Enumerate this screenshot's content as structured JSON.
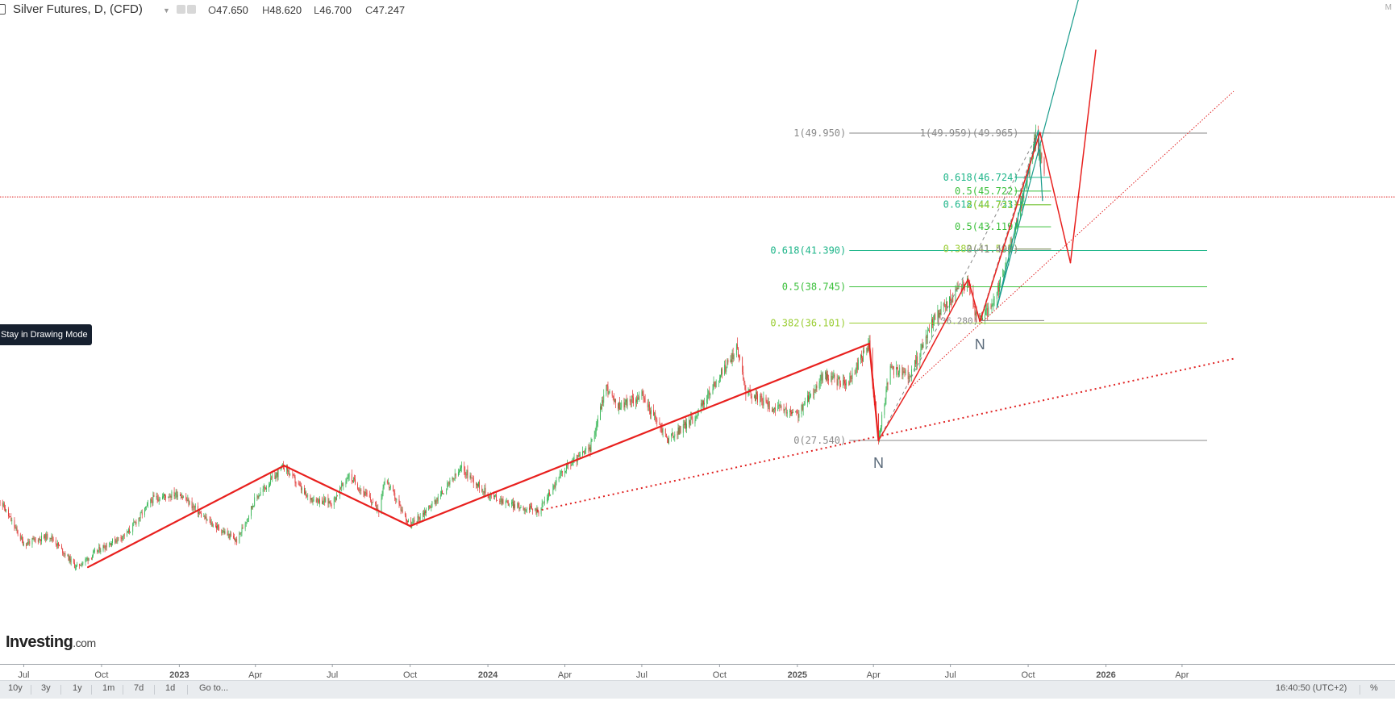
{
  "header": {
    "title": "Silver Futures, D, (CFD)",
    "ohlc": [
      {
        "label": "O",
        "value": "47.650"
      },
      {
        "label": "H",
        "value": "48.620"
      },
      {
        "label": "L",
        "value": "46.700"
      },
      {
        "label": "C",
        "value": "47.247"
      }
    ],
    "corner_mark": "M"
  },
  "tooltip": "Stay in Drawing Mode",
  "logo": {
    "main": "Investing",
    "suffix": ".com"
  },
  "bottom_bar": {
    "ranges": [
      "10y",
      "3y",
      "1y",
      "1m",
      "7d",
      "1d"
    ],
    "goto": "Go to...",
    "clock": "16:40:50 (UTC+2)",
    "percent": "%"
  },
  "chart_data": {
    "type": "candlestick",
    "symbol": "Silver Futures",
    "interval": "D",
    "x_ticks": [
      "Jul",
      "Oct",
      "2023",
      "Apr",
      "Jul",
      "Oct",
      "2024",
      "Apr",
      "Jul",
      "Oct",
      "2025",
      "Apr",
      "Jul",
      "Oct",
      "2026",
      "Apr"
    ],
    "price_path": [
      {
        "t": "2022-06-01",
        "v": 23.4
      },
      {
        "t": "2022-07-01",
        "v": 20.0
      },
      {
        "t": "2022-08-01",
        "v": 20.6
      },
      {
        "t": "2022-09-01",
        "v": 18.3
      },
      {
        "t": "2022-10-01",
        "v": 19.7
      },
      {
        "t": "2022-11-01",
        "v": 20.8
      },
      {
        "t": "2022-12-01",
        "v": 23.3
      },
      {
        "t": "2023-01-01",
        "v": 23.7
      },
      {
        "t": "2023-02-01",
        "v": 21.8
      },
      {
        "t": "2023-03-10",
        "v": 20.2
      },
      {
        "t": "2023-04-01",
        "v": 23.3
      },
      {
        "t": "2023-05-05",
        "v": 25.7
      },
      {
        "t": "2023-06-01",
        "v": 23.4
      },
      {
        "t": "2023-07-01",
        "v": 23.0
      },
      {
        "t": "2023-07-20",
        "v": 25.0
      },
      {
        "t": "2023-08-25",
        "v": 22.5
      },
      {
        "t": "2023-09-01",
        "v": 24.8
      },
      {
        "t": "2023-10-01",
        "v": 21.3
      },
      {
        "t": "2023-11-01",
        "v": 23.2
      },
      {
        "t": "2023-12-01",
        "v": 25.5
      },
      {
        "t": "2024-01-01",
        "v": 23.6
      },
      {
        "t": "2024-02-01",
        "v": 22.8
      },
      {
        "t": "2024-03-01",
        "v": 22.4
      },
      {
        "t": "2024-04-01",
        "v": 25.5
      },
      {
        "t": "2024-05-01",
        "v": 27.0
      },
      {
        "t": "2024-05-20",
        "v": 31.5
      },
      {
        "t": "2024-06-01",
        "v": 30.0
      },
      {
        "t": "2024-07-01",
        "v": 30.8
      },
      {
        "t": "2024-08-01",
        "v": 27.6
      },
      {
        "t": "2024-09-01",
        "v": 29.2
      },
      {
        "t": "2024-10-22",
        "v": 34.3
      },
      {
        "t": "2024-11-01",
        "v": 31.2
      },
      {
        "t": "2024-12-01",
        "v": 30.0
      },
      {
        "t": "2025-01-01",
        "v": 29.4
      },
      {
        "t": "2025-02-01",
        "v": 32.3
      },
      {
        "t": "2025-03-01",
        "v": 31.6
      },
      {
        "t": "2025-03-27",
        "v": 34.6
      },
      {
        "t": "2025-04-07",
        "v": 27.54
      },
      {
        "t": "2025-04-20",
        "v": 32.7
      },
      {
        "t": "2025-05-15",
        "v": 32.3
      },
      {
        "t": "2025-06-10",
        "v": 36.3
      },
      {
        "t": "2025-07-22",
        "v": 39.3
      },
      {
        "t": "2025-08-01",
        "v": 36.3
      },
      {
        "t": "2025-08-20",
        "v": 37.2
      },
      {
        "t": "2025-09-10",
        "v": 41.5
      },
      {
        "t": "2025-10-01",
        "v": 47.0
      },
      {
        "t": "2025-10-10",
        "v": 49.9
      },
      {
        "t": "2025-10-20",
        "v": 47.2
      }
    ],
    "fib_levels": [
      {
        "label": "1(49.950)",
        "value": 49.95,
        "color": "#8a8a8a"
      },
      {
        "label": "0.618(41.390)",
        "value": 41.39,
        "color": "#1db589"
      },
      {
        "label": "0.5(38.745)",
        "value": 38.745,
        "color": "#3cc03c"
      },
      {
        "label": "0.382(36.101)",
        "value": 36.101,
        "color": "#9acd32"
      },
      {
        "label": "0(27.540)",
        "value": 27.54,
        "color": "#8a8a8a"
      }
    ],
    "fib_levels_inner": [
      {
        "label": "1(49.959)(49.965)",
        "value": 49.96,
        "color": "#8a8a8a"
      },
      {
        "label": "0.618(46.724)",
        "value": 46.724,
        "color": "#1db589"
      },
      {
        "label": "0.5(45.722)",
        "value": 45.722,
        "color": "#3cc03c"
      },
      {
        "label": "0.618(44.733)",
        "value": 44.733,
        "color": "#1db589"
      },
      {
        "label": "2(44.721)",
        "value": 44.721,
        "color": "#9acd32"
      },
      {
        "label": "0.5(43.119)",
        "value": 43.119,
        "color": "#3cc03c"
      },
      {
        "label": "0.382(41.505)",
        "value": 41.505,
        "color": "#9acd32"
      },
      {
        "label": "0(41.490)",
        "value": 41.49,
        "color": "#8a8a8a"
      },
      {
        "label": "(36.280)",
        "value": 36.28,
        "color": "#8a8a8a"
      }
    ],
    "horizontal_line": {
      "value": 45.3,
      "style": "dotted",
      "color": "#e02020"
    },
    "zigzag_red": [
      {
        "t": "2022-09-15",
        "v": 18.3
      },
      {
        "t": "2023-05-05",
        "v": 25.7
      },
      {
        "t": "2023-10-01",
        "v": 21.3
      },
      {
        "t": "2025-03-27",
        "v": 34.6
      },
      {
        "t": "2025-04-07",
        "v": 27.54
      },
      {
        "t": "2025-05-15",
        "v": 31.5
      },
      {
        "t": "2025-07-22",
        "v": 39.3
      },
      {
        "t": "2025-08-05",
        "v": 36.2
      },
      {
        "t": "2025-10-15",
        "v": 50.0
      },
      {
        "t": "2025-11-20",
        "v": 40.5
      },
      {
        "t": "2025-12-20",
        "v": 56.0
      }
    ],
    "trendline_long": {
      "from": {
        "t": "2024-02-28",
        "v": 22.4
      },
      "to": {
        "t": "2026-06-01",
        "v": 33.5
      }
    },
    "trendline_short": {
      "from": {
        "t": "2025-05-15",
        "v": 31.4
      },
      "to": {
        "t": "2026-06-01",
        "v": 53.0
      }
    },
    "channel_teal": [
      {
        "from": {
          "t": "2025-08-25",
          "v": 37.2
        },
        "to": {
          "t": "2025-12-05",
          "v": 61.0
        }
      },
      {
        "from": {
          "t": "2025-08-25",
          "v": 37.2
        },
        "to": {
          "t": "2025-10-13",
          "v": 50.2
        }
      },
      {
        "from": {
          "t": "2025-10-13",
          "v": 50.2
        },
        "to": {
          "t": "2025-10-18",
          "v": 45.0
        }
      }
    ],
    "annotations": [
      {
        "text": "N",
        "t": "2025-04-07",
        "v": 27.54
      },
      {
        "text": "N",
        "t": "2025-08-05",
        "v": 36.2
      }
    ]
  }
}
